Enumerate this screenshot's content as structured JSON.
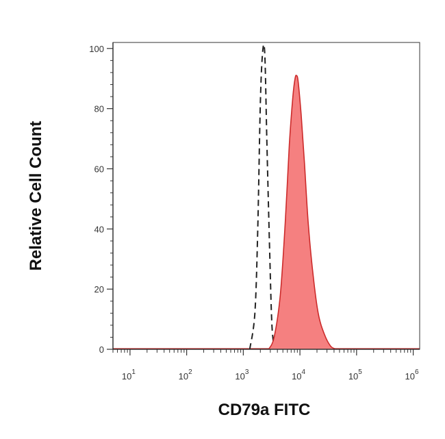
{
  "chart_data": {
    "type": "area",
    "xlabel": "CD79a FITC",
    "ylabel": "Relative Cell Count",
    "x_scale": "log",
    "xlim": [
      5,
      1300000
    ],
    "ylim": [
      0,
      102
    ],
    "grid": false,
    "legend": "none",
    "x_ticks": [
      {
        "value": 10,
        "base": "10",
        "exp": "1"
      },
      {
        "value": 100,
        "base": "10",
        "exp": "2"
      },
      {
        "value": 1000,
        "base": "10",
        "exp": "3"
      },
      {
        "value": 10000,
        "base": "10",
        "exp": "4"
      },
      {
        "value": 100000,
        "base": "10",
        "exp": "5"
      },
      {
        "value": 1000000,
        "base": "10",
        "exp": "6"
      }
    ],
    "y_ticks": [
      0,
      20,
      40,
      60,
      80,
      100
    ],
    "colors": {
      "stained_fill": "#f58080",
      "stained_line": "#cc2a2a",
      "control_line": "#222222",
      "axis": "#333333"
    },
    "series": [
      {
        "style": "dashed-line",
        "x": [
          1300,
          1600,
          1800,
          2000,
          2200,
          2400,
          2600,
          2900,
          3200,
          3600
        ],
        "y": [
          0,
          12,
          40,
          82,
          99,
          98,
          70,
          35,
          8,
          0
        ]
      },
      {
        "style": "filled",
        "x": [
          2800,
          3500,
          4500,
          5500,
          6500,
          7500,
          8200,
          8700,
          9300,
          10500,
          12000,
          14000,
          17000,
          21000,
          27000,
          35000,
          45000
        ],
        "y": [
          0,
          4,
          18,
          42,
          68,
          84,
          90,
          91,
          89,
          78,
          62,
          42,
          25,
          12,
          5,
          1,
          0
        ]
      }
    ]
  }
}
